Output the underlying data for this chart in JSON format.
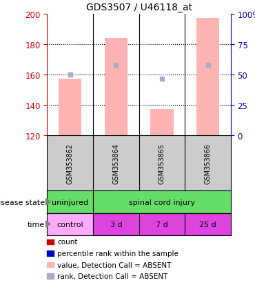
{
  "title": "GDS3507 / U46118_at",
  "samples": [
    "GSM353862",
    "GSM353864",
    "GSM353865",
    "GSM353866"
  ],
  "bar_bottom": 120,
  "bar_tops_value": [
    157,
    184,
    137,
    197
  ],
  "rank_markers": [
    160,
    166,
    157,
    166
  ],
  "left_ylim": [
    120,
    200
  ],
  "left_yticks": [
    120,
    140,
    160,
    180,
    200
  ],
  "right_ylim": [
    0,
    100
  ],
  "right_yticks": [
    0,
    25,
    50,
    75,
    100
  ],
  "right_yticklabels": [
    "0",
    "25",
    "50",
    "75",
    "100%"
  ],
  "bar_color": "#FFB3B3",
  "rank_marker_color": "#AAAACC",
  "left_axis_color": "#CC0000",
  "right_axis_color": "#0000CC",
  "disease_state_labels": [
    "uninjured",
    "spinal cord injury"
  ],
  "disease_state_color": "#66DD66",
  "time_labels": [
    "control",
    "3 d",
    "7 d",
    "25 d"
  ],
  "time_color_control": "#FFAAFF",
  "time_color_other": "#DD44DD",
  "sample_bg_color": "#CCCCCC",
  "legend_colors": [
    "#CC0000",
    "#0000CC",
    "#FFB3B3",
    "#AAAACC"
  ],
  "legend_labels": [
    "count",
    "percentile rank within the sample",
    "value, Detection Call = ABSENT",
    "rank, Detection Call = ABSENT"
  ]
}
